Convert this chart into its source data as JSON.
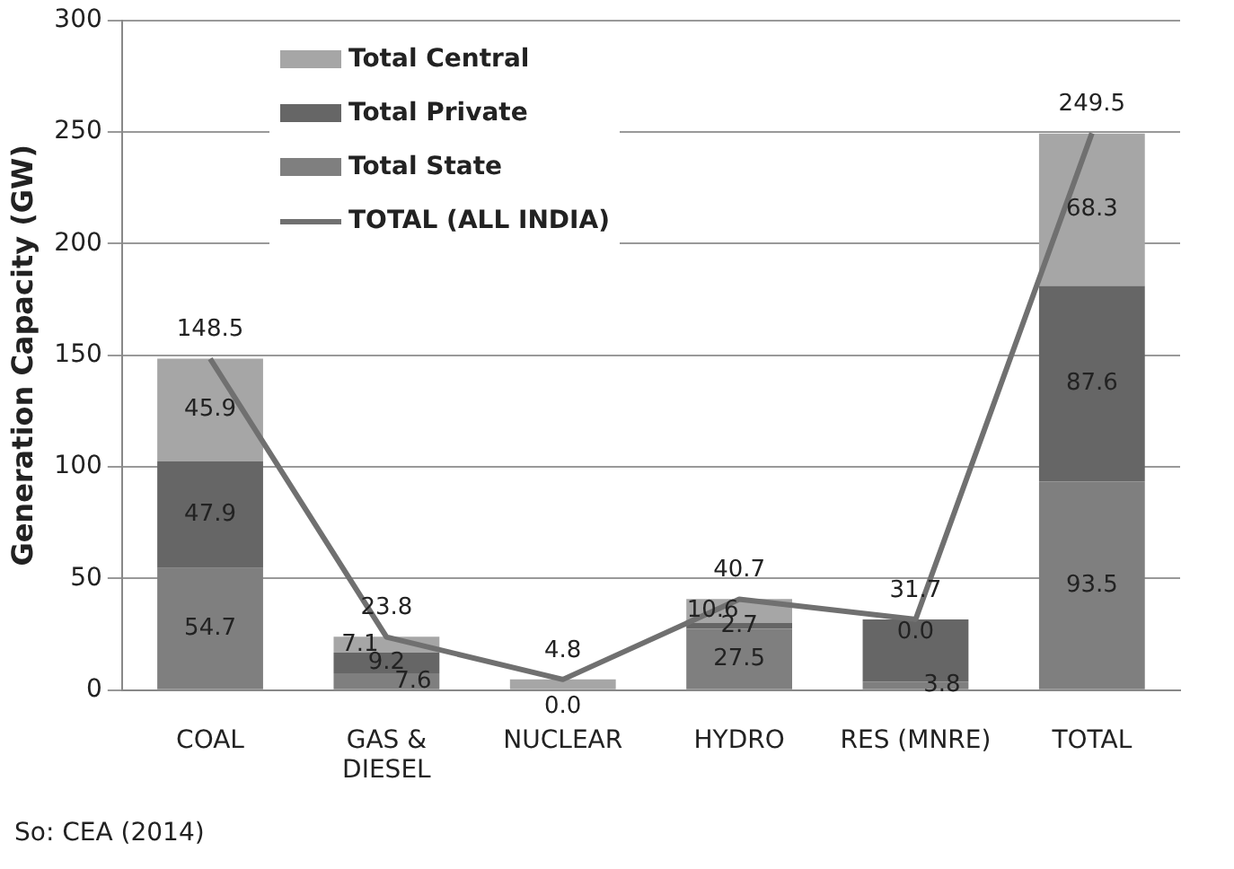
{
  "chart_data": {
    "type": "bar",
    "stacked": true,
    "ylabel": "Generation Capacity (GW)",
    "categories": [
      "COAL",
      "GAS & DIESEL",
      "NUCLEAR",
      "HYDRO",
      "RES (MNRE)",
      "TOTAL"
    ],
    "series": [
      {
        "name": "Total State",
        "color": "#7f7f7f",
        "values": [
          54.7,
          7.6,
          0.0,
          27.5,
          3.8,
          93.5
        ],
        "value_labels": [
          "54.7",
          "7.6",
          "0.0",
          "27.5",
          "3.8",
          "93.5"
        ]
      },
      {
        "name": "Total Private",
        "color": "#666666",
        "values": [
          47.9,
          9.2,
          0.0,
          2.7,
          27.9,
          87.6
        ],
        "value_labels": [
          "47.9",
          "9.2",
          null,
          "2.7",
          null,
          "87.6"
        ]
      },
      {
        "name": "Total Central",
        "color": "#a6a6a6",
        "values": [
          45.9,
          7.1,
          4.8,
          10.6,
          0.0,
          68.3
        ],
        "value_labels": [
          "45.9",
          "7.1",
          null,
          "10.6",
          "0.0",
          "68.3"
        ]
      },
      {
        "name": "TOTAL (ALL INDIA)",
        "type": "line",
        "color": "#707070",
        "values": [
          148.5,
          23.8,
          4.8,
          40.7,
          31.7,
          249.5
        ]
      }
    ],
    "totals": [
      "148.5",
      "23.8",
      "4.8",
      "40.7",
      "31.7",
      "249.5"
    ],
    "ylim": [
      0,
      300
    ],
    "yticks": [
      0,
      50,
      100,
      150,
      200,
      250,
      300
    ],
    "grid": "y",
    "legend": "top left",
    "marker": "none",
    "annotations": [
      "So: CEA (2014)"
    ]
  }
}
